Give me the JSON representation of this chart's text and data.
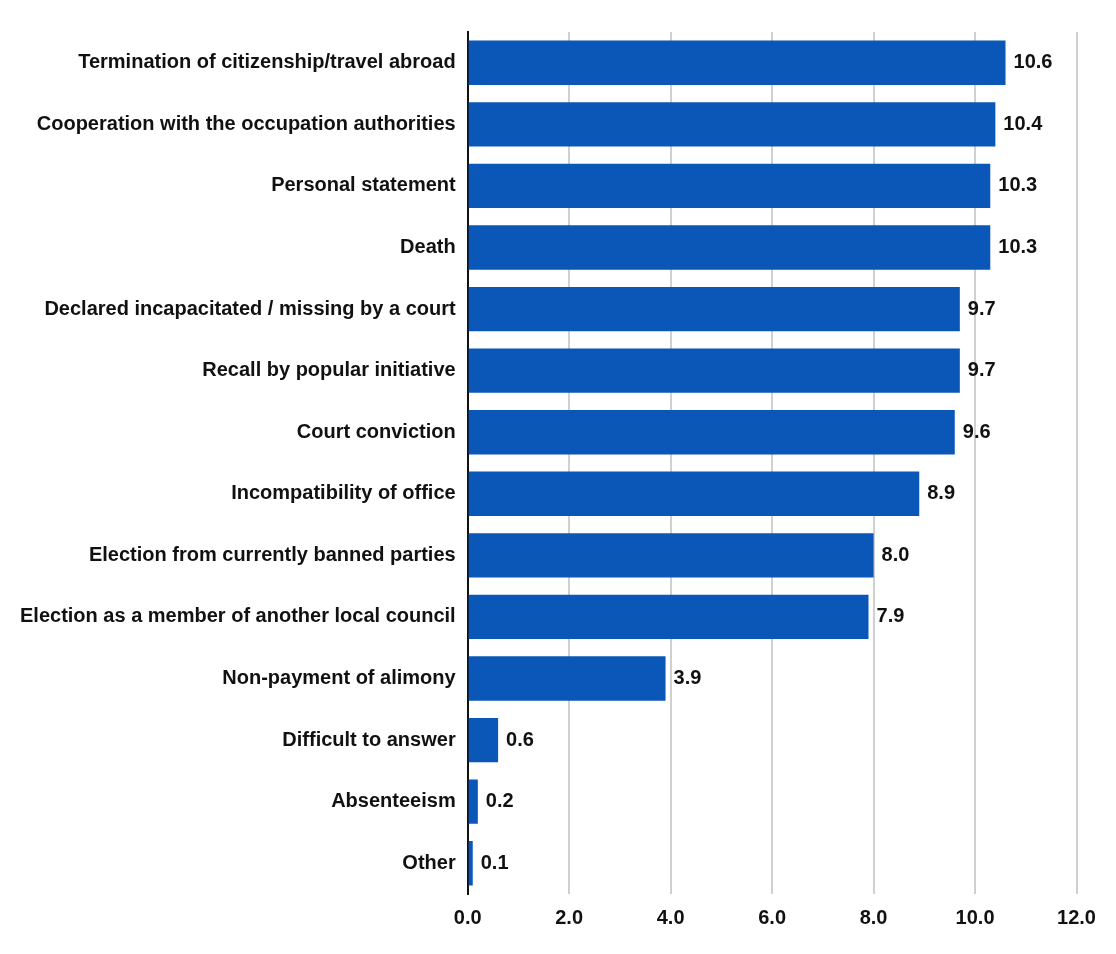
{
  "chart_data": {
    "type": "bar",
    "orientation": "horizontal",
    "categories": [
      "Termination of citizenship/travel abroad",
      "Cooperation with the occupation authorities",
      "Personal statement",
      "Death",
      "Declared incapacitated / missing by a court",
      "Recall by popular initiative",
      "Court conviction",
      "Incompatibility of office",
      "Election from currently banned parties",
      "Election as a member of another local council",
      "Non-payment of alimony",
      "Difficult to answer",
      "Absenteeism",
      "Other"
    ],
    "values": [
      10.6,
      10.4,
      10.3,
      10.3,
      9.7,
      9.7,
      9.6,
      8.9,
      8.0,
      7.9,
      3.9,
      0.6,
      0.2,
      0.1
    ],
    "value_labels": [
      "10.6",
      "10.4",
      "10.3",
      "10.3",
      "9.7",
      "9.7",
      "9.6",
      "8.9",
      "8.0",
      "7.9",
      "3.9",
      "0.6",
      "0.2",
      "0.1"
    ],
    "color": "#0a57b8",
    "xlim": [
      0,
      12
    ],
    "xticks": [
      {
        "value": 0,
        "label": "0.0"
      },
      {
        "value": 2,
        "label": "2.0"
      },
      {
        "value": 4,
        "label": "4.0"
      },
      {
        "value": 6,
        "label": "6.0"
      },
      {
        "value": 8,
        "label": "8.0"
      },
      {
        "value": 10,
        "label": "10.0"
      },
      {
        "value": 12,
        "label": "12.0"
      }
    ],
    "grid": "x",
    "legend": false
  }
}
